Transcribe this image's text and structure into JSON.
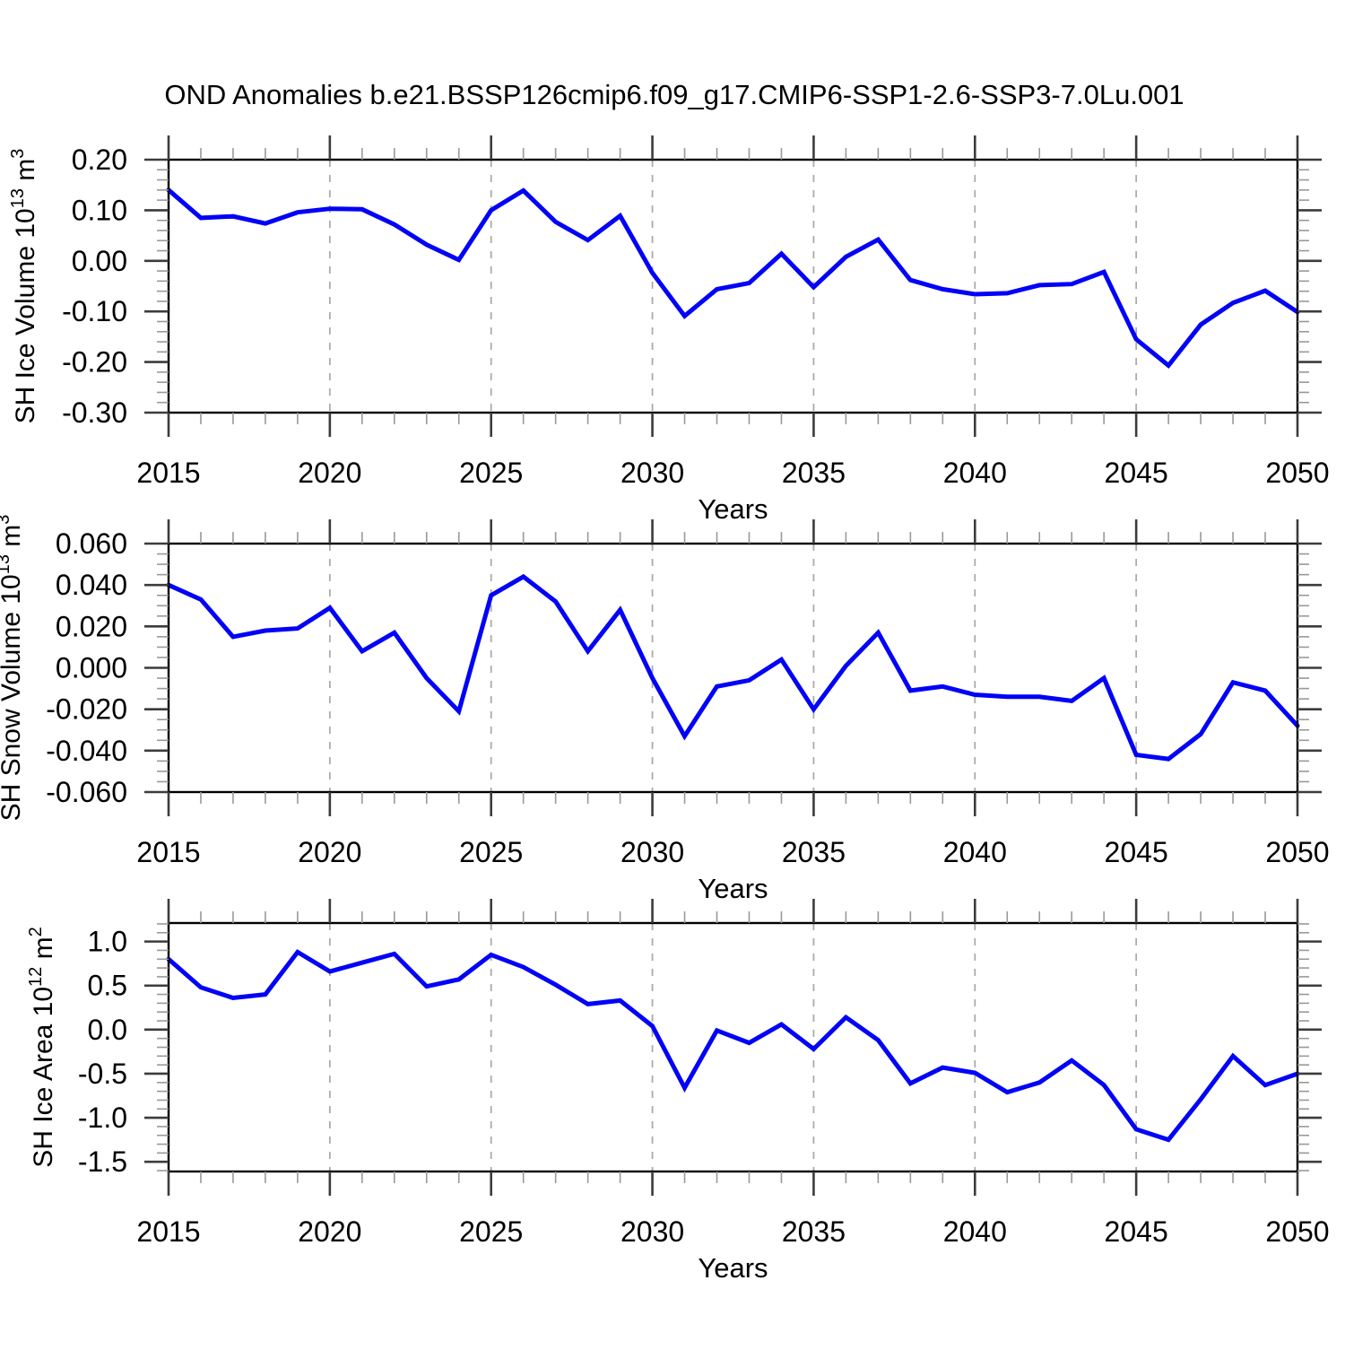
{
  "title": "OND Anomalies b.e21.BSSP126cmip6.f09_g17.CMIP6-SSP1-2.6-SSP3-7.0Lu.001",
  "colors": {
    "line": "#0202F8",
    "axis": "#000000",
    "major_tick": "#3c3c3c",
    "minor_tick": "#999999",
    "grid": "#ababab",
    "text": "#000000",
    "background": "#ffffff"
  },
  "chart_data": [
    {
      "type": "line",
      "panel": 1,
      "ylabel": "SH Ice Volume 10^13 m^3",
      "xlabel": "Years",
      "legend_position": "none",
      "grid": "vertical-dashed",
      "line_color": "#0202F8",
      "xlim": [
        2015,
        2050
      ],
      "ylim": [
        -0.3,
        0.2
      ],
      "x_minor_step": 1,
      "y_minor_step": 0.02,
      "grid_x": [
        2020,
        2025,
        2030,
        2035,
        2040,
        2045
      ],
      "xticks": [
        {
          "v": 2015,
          "label": "2015"
        },
        {
          "v": 2020,
          "label": "2020"
        },
        {
          "v": 2025,
          "label": "2025"
        },
        {
          "v": 2030,
          "label": "2030"
        },
        {
          "v": 2035,
          "label": "2035"
        },
        {
          "v": 2040,
          "label": "2040"
        },
        {
          "v": 2045,
          "label": "2045"
        },
        {
          "v": 2050,
          "label": "2050"
        }
      ],
      "yticks": [
        {
          "v": 0.2,
          "label": "0.20"
        },
        {
          "v": 0.1,
          "label": "0.10"
        },
        {
          "v": 0.0,
          "label": "0.00"
        },
        {
          "v": -0.1,
          "label": "-0.10"
        },
        {
          "v": -0.2,
          "label": "-0.20"
        },
        {
          "v": -0.3,
          "label": "-0.30"
        }
      ],
      "years": [
        2015,
        2016,
        2017,
        2018,
        2019,
        2020,
        2021,
        2022,
        2023,
        2024,
        2025,
        2026,
        2027,
        2028,
        2029,
        2030,
        2031,
        2032,
        2033,
        2034,
        2035,
        2036,
        2037,
        2038,
        2039,
        2040,
        2041,
        2042,
        2043,
        2044,
        2045,
        2046,
        2047,
        2048,
        2049,
        2050
      ],
      "values": [
        0.14,
        0.085,
        0.088,
        0.074,
        0.096,
        0.103,
        0.102,
        0.072,
        0.032,
        0.002,
        0.1,
        0.139,
        0.077,
        0.041,
        0.089,
        -0.024,
        -0.109,
        -0.056,
        -0.044,
        0.014,
        -0.052,
        0.008,
        0.042,
        -0.038,
        -0.056,
        -0.066,
        -0.064,
        -0.048,
        -0.046,
        -0.022,
        -0.155,
        -0.207,
        -0.126,
        -0.083,
        -0.059,
        -0.101
      ]
    },
    {
      "type": "line",
      "panel": 2,
      "ylabel": "SH Snow Volume 10^13 m^3",
      "xlabel": "Years",
      "legend_position": "none",
      "grid": "vertical-dashed",
      "line_color": "#0202F8",
      "xlim": [
        2015,
        2050
      ],
      "ylim": [
        -0.06,
        0.06
      ],
      "x_minor_step": 1,
      "y_minor_step": 0.005,
      "grid_x": [
        2020,
        2025,
        2030,
        2035,
        2040,
        2045
      ],
      "xticks": [
        {
          "v": 2015,
          "label": "2015"
        },
        {
          "v": 2020,
          "label": "2020"
        },
        {
          "v": 2025,
          "label": "2025"
        },
        {
          "v": 2030,
          "label": "2030"
        },
        {
          "v": 2035,
          "label": "2035"
        },
        {
          "v": 2040,
          "label": "2040"
        },
        {
          "v": 2045,
          "label": "2045"
        },
        {
          "v": 2050,
          "label": "2050"
        }
      ],
      "yticks": [
        {
          "v": 0.06,
          "label": "0.060"
        },
        {
          "v": 0.04,
          "label": "0.040"
        },
        {
          "v": 0.02,
          "label": "0.020"
        },
        {
          "v": 0.0,
          "label": "0.000"
        },
        {
          "v": -0.02,
          "label": "-0.020"
        },
        {
          "v": -0.04,
          "label": "-0.040"
        },
        {
          "v": -0.06,
          "label": "-0.060"
        }
      ],
      "years": [
        2015,
        2016,
        2017,
        2018,
        2019,
        2020,
        2021,
        2022,
        2023,
        2024,
        2025,
        2026,
        2027,
        2028,
        2029,
        2030,
        2031,
        2032,
        2033,
        2034,
        2035,
        2036,
        2037,
        2038,
        2039,
        2040,
        2041,
        2042,
        2043,
        2044,
        2045,
        2046,
        2047,
        2048,
        2049,
        2050
      ],
      "values": [
        0.04,
        0.033,
        0.015,
        0.018,
        0.019,
        0.029,
        0.008,
        0.017,
        -0.005,
        -0.021,
        0.035,
        0.044,
        0.032,
        0.008,
        0.028,
        -0.005,
        -0.033,
        -0.009,
        -0.006,
        0.004,
        -0.02,
        0.001,
        0.017,
        -0.011,
        -0.009,
        -0.013,
        -0.014,
        -0.014,
        -0.016,
        -0.005,
        -0.042,
        -0.044,
        -0.032,
        -0.007,
        -0.011,
        -0.028
      ]
    },
    {
      "type": "line",
      "panel": 3,
      "ylabel": "SH Ice Area 10^12 m^2",
      "xlabel": "Years",
      "legend_position": "none",
      "grid": "vertical-dashed",
      "line_color": "#0202F8",
      "xlim": [
        2015,
        2050
      ],
      "ylim": [
        -1.61,
        1.21
      ],
      "x_minor_step": 1,
      "y_minor_step": 0.1,
      "grid_x": [
        2020,
        2025,
        2030,
        2035,
        2040,
        2045
      ],
      "xticks": [
        {
          "v": 2015,
          "label": "2015"
        },
        {
          "v": 2020,
          "label": "2020"
        },
        {
          "v": 2025,
          "label": "2025"
        },
        {
          "v": 2030,
          "label": "2030"
        },
        {
          "v": 2035,
          "label": "2035"
        },
        {
          "v": 2040,
          "label": "2040"
        },
        {
          "v": 2045,
          "label": "2045"
        },
        {
          "v": 2050,
          "label": "2050"
        }
      ],
      "yticks": [
        {
          "v": 1.0,
          "label": "1.0"
        },
        {
          "v": 0.5,
          "label": "0.5"
        },
        {
          "v": 0.0,
          "label": "0.0"
        },
        {
          "v": -0.5,
          "label": "-0.5"
        },
        {
          "v": -1.0,
          "label": "-1.0"
        },
        {
          "v": -1.5,
          "label": "-1.5"
        }
      ],
      "years": [
        2015,
        2016,
        2017,
        2018,
        2019,
        2020,
        2021,
        2022,
        2023,
        2024,
        2025,
        2026,
        2027,
        2028,
        2029,
        2030,
        2031,
        2032,
        2033,
        2034,
        2035,
        2036,
        2037,
        2038,
        2039,
        2040,
        2041,
        2042,
        2043,
        2044,
        2045,
        2046,
        2047,
        2048,
        2049,
        2050
      ],
      "values": [
        0.8,
        0.48,
        0.36,
        0.4,
        0.88,
        0.66,
        0.76,
        0.86,
        0.49,
        0.57,
        0.85,
        0.71,
        0.51,
        0.29,
        0.33,
        0.04,
        -0.66,
        -0.01,
        -0.15,
        0.06,
        -0.22,
        0.14,
        -0.12,
        -0.61,
        -0.43,
        -0.49,
        -0.71,
        -0.6,
        -0.35,
        -0.63,
        -1.13,
        -1.25,
        -0.79,
        -0.3,
        -0.63,
        -0.5
      ]
    }
  ]
}
